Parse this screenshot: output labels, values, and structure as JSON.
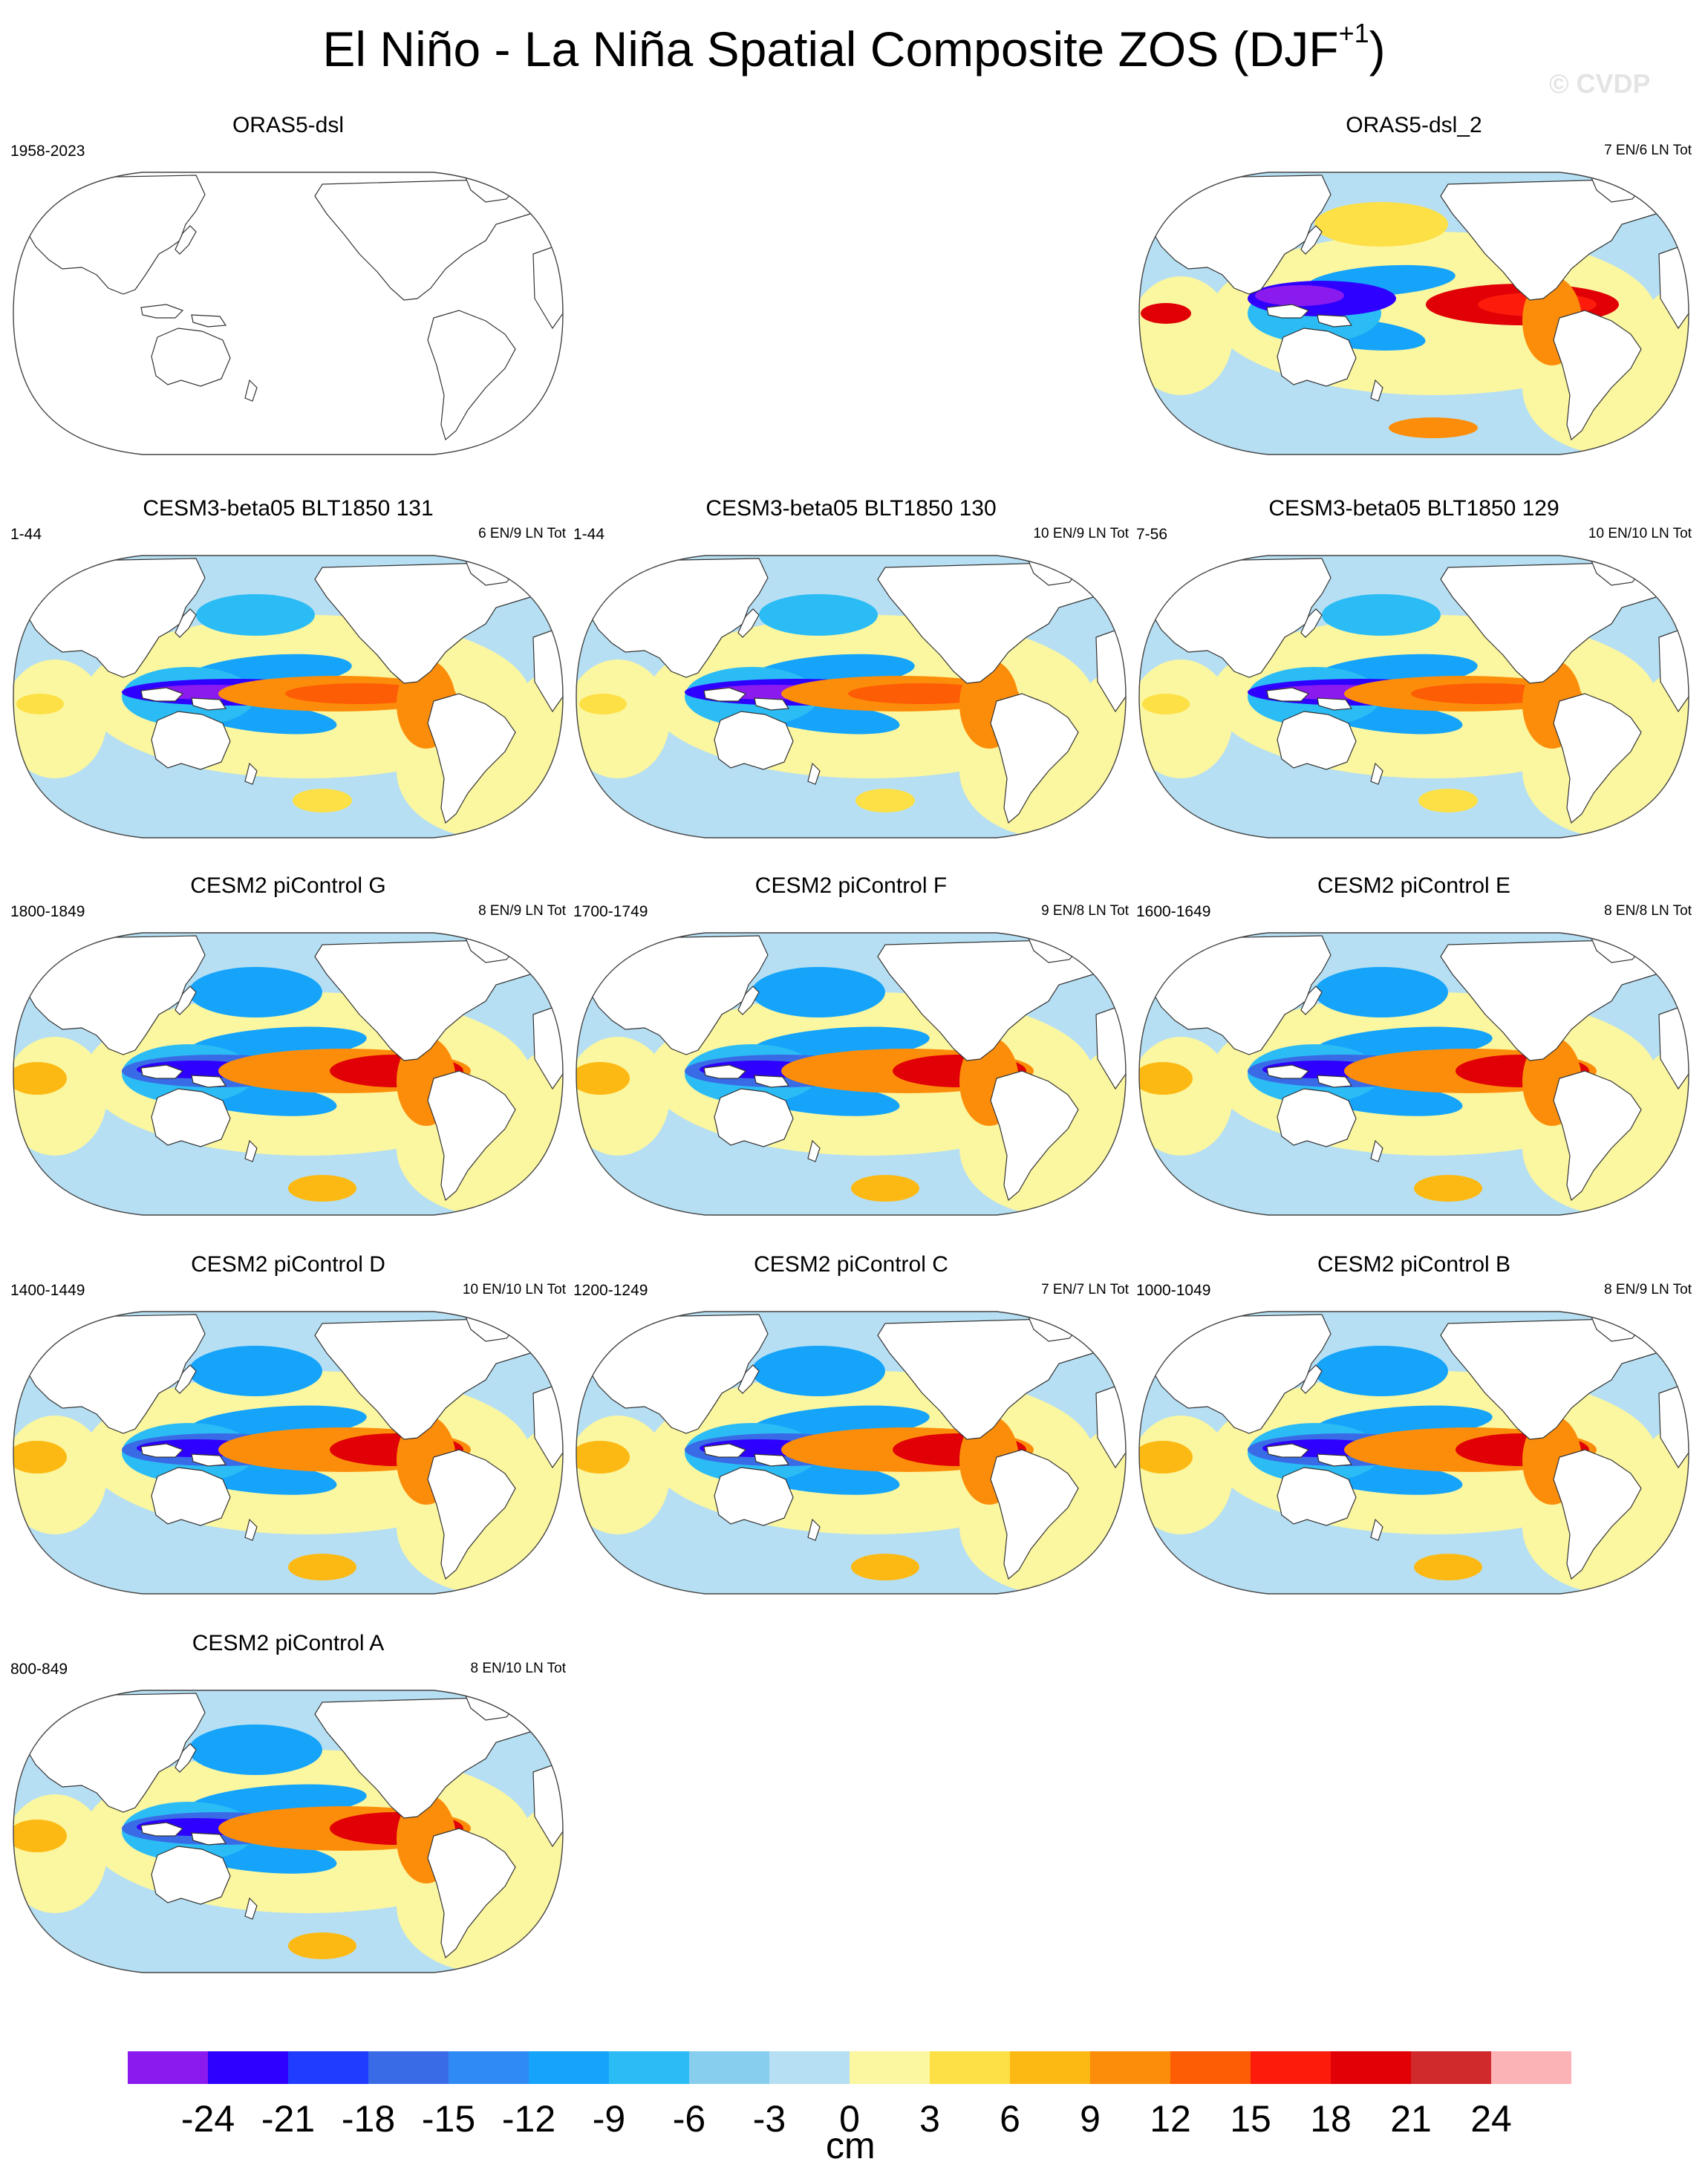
{
  "title_main": "El Niño - La Niña Spatial Composite ZOS (DJF",
  "title_sup": "+1",
  "title_close": ")",
  "watermark": "© CVDP",
  "colorbar": {
    "unit": "cm",
    "labels": [
      "-24",
      "-21",
      "-18",
      "-15",
      "-12",
      "-9",
      "-6",
      "-3",
      "0",
      "3",
      "6",
      "9",
      "12",
      "15",
      "18",
      "21",
      "24"
    ],
    "colors": [
      "#8b1aef",
      "#2e00ff",
      "#1f3cff",
      "#3a6be6",
      "#2f8af5",
      "#15a4fa",
      "#2bbcf5",
      "#87cdee",
      "#b6dff3",
      "#fbf6a0",
      "#fde046",
      "#fdb913",
      "#fc8d0a",
      "#fd5d04",
      "#fd1c0c",
      "#e00005",
      "#d02a2c",
      "#fcb3b5"
    ]
  },
  "panels": [
    {
      "id": "orasdsl",
      "title": "ORAS5-dsl",
      "years": "1958-2023",
      "count": "",
      "empty": true
    },
    {
      "id": "oras2",
      "title": "ORAS5-dsl_2",
      "years": "",
      "count": "7 EN/6 LN Tot",
      "variant": "obs"
    },
    {
      "id": "b131",
      "title": "CESM3-beta05 BLT1850 131",
      "years": "1-44",
      "count": "6 EN/9 LN Tot",
      "variant": "cesm3"
    },
    {
      "id": "b130",
      "title": "CESM3-beta05 BLT1850 130",
      "years": "1-44",
      "count": "10 EN/9 LN Tot",
      "variant": "cesm3"
    },
    {
      "id": "b129",
      "title": "CESM3-beta05 BLT1850 129",
      "years": "7-56",
      "count": "10 EN/10 LN Tot",
      "variant": "cesm3"
    },
    {
      "id": "pg",
      "title": "CESM2 piControl G",
      "years": "1800-1849",
      "count": "8 EN/9 LN Tot",
      "variant": "cesm2"
    },
    {
      "id": "pf",
      "title": "CESM2 piControl F",
      "years": "1700-1749",
      "count": "9 EN/8 LN Tot",
      "variant": "cesm2"
    },
    {
      "id": "pe",
      "title": "CESM2 piControl E",
      "years": "1600-1649",
      "count": "8 EN/8 LN Tot",
      "variant": "cesm2"
    },
    {
      "id": "pd",
      "title": "CESM2 piControl D",
      "years": "1400-1449",
      "count": "10 EN/10 LN Tot",
      "variant": "cesm2"
    },
    {
      "id": "pc",
      "title": "CESM2 piControl C",
      "years": "1200-1249",
      "count": "7 EN/7 LN Tot",
      "variant": "cesm2"
    },
    {
      "id": "pb",
      "title": "CESM2 piControl B",
      "years": "1000-1049",
      "count": "8 EN/9 LN Tot",
      "variant": "cesm2"
    },
    {
      "id": "pa",
      "title": "CESM2 piControl A",
      "years": "800-849",
      "count": "8 EN/10 LN Tot",
      "variant": "cesm2"
    }
  ]
}
